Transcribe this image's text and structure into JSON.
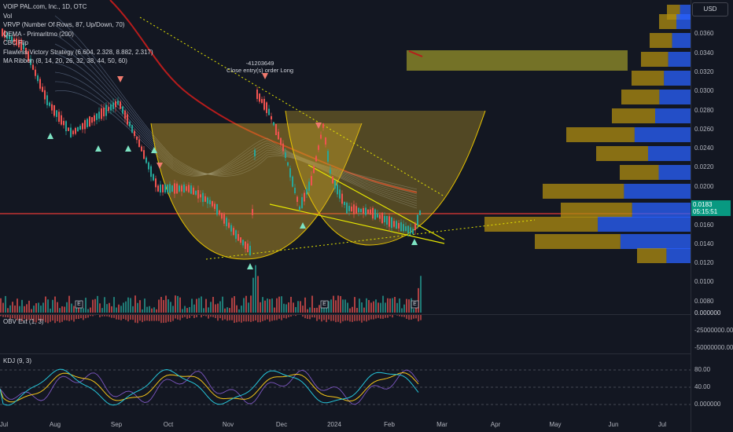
{
  "legend": {
    "symbol": "VOIP PAL.com, Inc., 1D, OTC",
    "vol": "Vol",
    "vrvp": "VRVP (Number Of Rows, 87, Up/Down, 70)",
    "qema": "QEMA - Primaritmo (200)",
    "cbc": "CBC Flip",
    "flawless": "Flawless Victory Strategy (6.604, 2.328, 8.882, 2.317)",
    "ribbon": "MA Ribbon (8, 14, 20, 26, 32, 38, 44, 50, 60)"
  },
  "obv_label": "OBV Ext (1, 3)",
  "kdj_label": "KDJ (9, 3)",
  "currency_button": "USD",
  "current_price": "0.0183",
  "countdown": "05:15:51",
  "trade_annotation": {
    "id": "-41203649",
    "text": "Close entry(s) order Long"
  },
  "earnings_marker": "E",
  "y_axis_ticks": [
    "0.0360",
    "0.0340",
    "0.0320",
    "0.0300",
    "0.0280",
    "0.0260",
    "0.0240",
    "0.0220",
    "0.0200",
    "0.0160",
    "0.0140",
    "0.0120",
    "0.0100",
    "0.0080",
    "0.000000"
  ],
  "obv_ticks": [
    "0.000000",
    "-25000000.00",
    "-50000000.00"
  ],
  "kdj_ticks": [
    "80.00",
    "40.00",
    "0.000000"
  ],
  "x_axis_ticks": [
    "Jul",
    "Aug",
    "Sep",
    "Oct",
    "Nov",
    "Dec",
    "2024",
    "Feb",
    "Mar",
    "Apr",
    "May",
    "Jun",
    "Jul"
  ],
  "colors": {
    "background": "#131722",
    "up": "#26a69a",
    "down": "#ef5350",
    "qema": "#b71c1c",
    "cup": "#c9a227",
    "vrvp_up": "#2962ff",
    "vrvp_down": "#b08d10"
  }
}
